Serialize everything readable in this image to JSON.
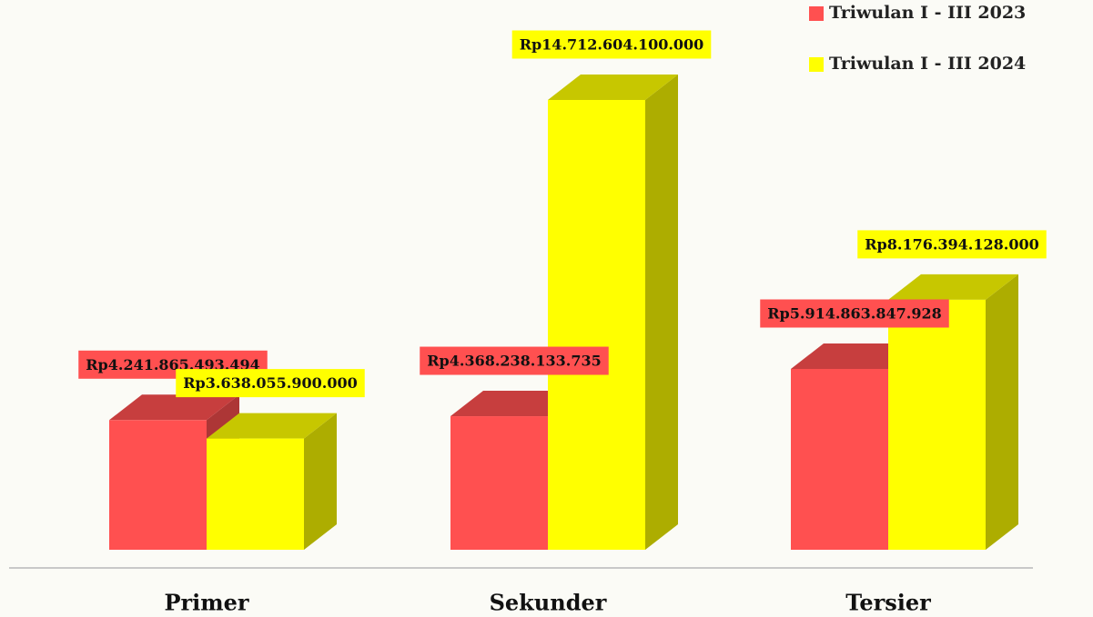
{
  "chart_data": {
    "type": "bar3d",
    "categories": [
      "Primer",
      "Sekunder",
      "Tersier"
    ],
    "series": [
      {
        "name": "Triwulan I - III 2023",
        "color": "#ff5050",
        "values": [
          4241865493494,
          4368238133735,
          5914863847928
        ],
        "value_labels": [
          "Rp4.241.865.493.494",
          "Rp4.368.238.133.735",
          "Rp5.914.863.847.928"
        ]
      },
      {
        "name": "Triwulan I - III 2024",
        "color": "#ffff00",
        "values": [
          3638055900000,
          14712604100000,
          8176394128000
        ],
        "value_labels": [
          "Rp3.638.055.900.000",
          "Rp14.712.604.100.000",
          "Rp8.176.394.128.000"
        ]
      }
    ],
    "legend": "top-right"
  }
}
